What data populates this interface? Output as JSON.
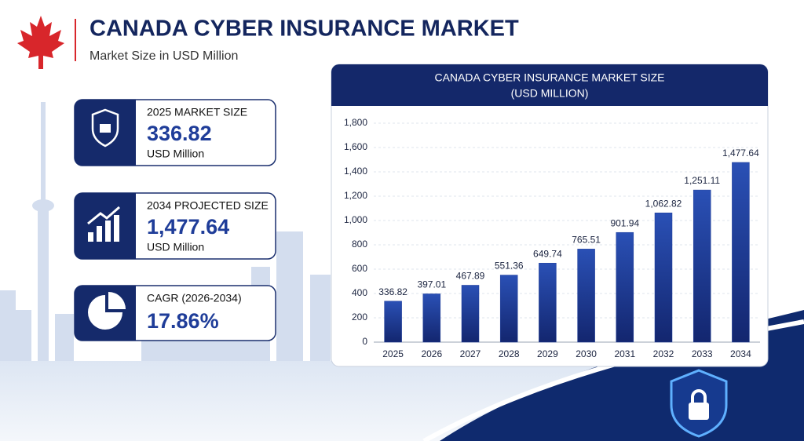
{
  "header": {
    "title": "CANADA CYBER INSURANCE MARKET",
    "subtitle": "Market Size in USD Million"
  },
  "cards": [
    {
      "label": "2025 MARKET SIZE",
      "value": "336.82",
      "unit": "USD Million"
    },
    {
      "label": "2034 PROJECTED SIZE",
      "value": "1,477.64",
      "unit": "USD Million"
    },
    {
      "label": "CAGR (2026-2034)",
      "value": "17.86%"
    }
  ],
  "chart_data": {
    "type": "bar",
    "title": "CANADA CYBER INSURANCE MARKET SIZE",
    "subtitle": "(USD MILLION)",
    "categories": [
      "2025",
      "2026",
      "2027",
      "2028",
      "2029",
      "2030",
      "2031",
      "2032",
      "2033",
      "2034"
    ],
    "values": [
      336.82,
      397.01,
      467.89,
      551.36,
      649.74,
      765.51,
      901.94,
      1062.82,
      1251.11,
      1477.64
    ],
    "value_labels": [
      "336.82",
      "397.01",
      "467.89",
      "551.36",
      "649.74",
      "765.51",
      "901.94",
      "1,062.82",
      "1,251.11",
      "1,477.64"
    ],
    "color": "#1f3d99",
    "ylim": [
      0,
      1800
    ],
    "yticks": [
      0,
      200,
      400,
      600,
      800,
      {
        "value": 1000,
        "label": "1,000"
      },
      {
        "value": 1200,
        "label": "1,200"
      },
      {
        "value": 1400,
        "label": "1,400"
      },
      {
        "value": 1600,
        "label": "1,600"
      },
      {
        "value": 1800,
        "label": "1,800"
      }
    ],
    "grid": true
  }
}
